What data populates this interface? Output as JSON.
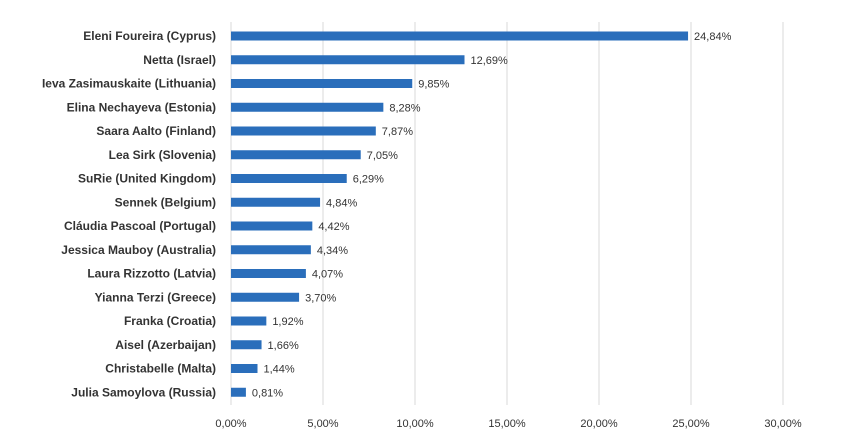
{
  "chart_data": {
    "type": "bar",
    "orientation": "horizontal",
    "categories": [
      "Eleni Foureira (Cyprus)",
      "Netta (Israel)",
      "Ieva Zasimauskaite (Lithuania)",
      "Elina Nechayeva (Estonia)",
      "Saara Aalto (Finland)",
      "Lea Sirk (Slovenia)",
      "SuRie (United Kingdom)",
      "Sennek (Belgium)",
      "Cláudia Pascoal (Portugal)",
      "Jessica Mauboy (Australia)",
      "Laura Rizzotto (Latvia)",
      "Yianna Terzi (Greece)",
      "Franka (Croatia)",
      "Aisel (Azerbaijan)",
      "Christabelle (Malta)",
      "Julia Samoylova (Russia)"
    ],
    "values": [
      24.84,
      12.69,
      9.85,
      8.28,
      7.87,
      7.05,
      6.29,
      4.84,
      4.42,
      4.34,
      4.07,
      3.7,
      1.92,
      1.66,
      1.44,
      0.81
    ],
    "data_labels": [
      "24,84%",
      "12,69%",
      "9,85%",
      "8,28%",
      "7,87%",
      "7,05%",
      "6,29%",
      "4,84%",
      "4,42%",
      "4,34%",
      "4,07%",
      "3,70%",
      "1,92%",
      "1,66%",
      "1,44%",
      "0,81%"
    ],
    "x_ticks": [
      0,
      5,
      10,
      15,
      20,
      25,
      30
    ],
    "x_tick_labels": [
      "0,00%",
      "5,00%",
      "10,00%",
      "15,00%",
      "20,00%",
      "25,00%",
      "30,00%"
    ],
    "xlim": [
      0,
      30
    ],
    "grid": "vertical",
    "legend": "none",
    "title": "",
    "xlabel": "",
    "ylabel": "",
    "colors": {
      "bar": "#2a6ebb",
      "grid": "#d9d9d9",
      "text": "#333333"
    }
  }
}
